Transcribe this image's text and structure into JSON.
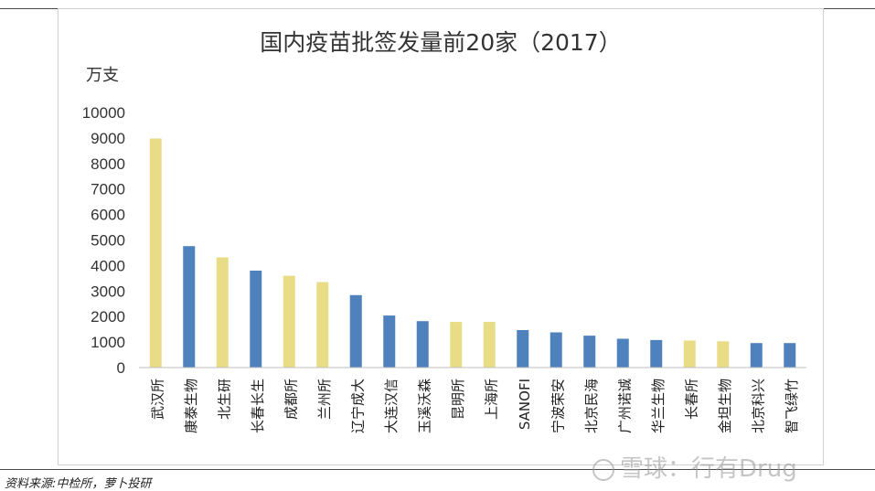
{
  "chart_data": {
    "type": "bar",
    "title": "国内疫苗批签发量前20家（2017）",
    "ylabel": "万支",
    "xlabel": "",
    "ylim": [
      0,
      10000
    ],
    "yticks": [
      0,
      1000,
      2000,
      3000,
      4000,
      5000,
      6000,
      7000,
      8000,
      9000,
      10000
    ],
    "grid": false,
    "categories": [
      "武汉所",
      "康泰生物",
      "北生研",
      "长春长生",
      "成都所",
      "兰州所",
      "辽宁成大",
      "大连汉信",
      "玉溪沃森",
      "昆明所",
      "上海所",
      "SANOFI",
      "宁波荣安",
      "北京民海",
      "广州诺诚",
      "华兰生物",
      "长春所",
      "金坦生物",
      "北京科兴",
      "智飞绿竹"
    ],
    "values": [
      8980,
      4760,
      4320,
      3800,
      3600,
      3350,
      2840,
      2040,
      1820,
      1790,
      1790,
      1470,
      1380,
      1250,
      1130,
      1080,
      1060,
      1030,
      960,
      960
    ],
    "bar_colors": [
      "#e8dd86",
      "#4f81bd",
      "#e8dd86",
      "#4f81bd",
      "#e8dd86",
      "#e8dd86",
      "#4f81bd",
      "#4f81bd",
      "#4f81bd",
      "#e8dd86",
      "#e8dd86",
      "#4f81bd",
      "#4f81bd",
      "#4f81bd",
      "#4f81bd",
      "#4f81bd",
      "#e8dd86",
      "#e8dd86",
      "#4f81bd",
      "#4f81bd"
    ]
  },
  "source_note": "资料来源:中检所，萝卜投研",
  "watermark": "雪球：行有Drug"
}
